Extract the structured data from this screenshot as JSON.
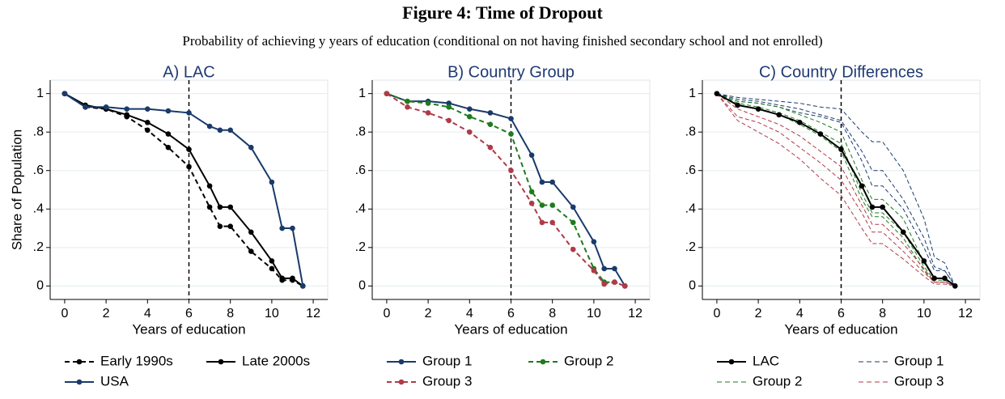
{
  "title": "Figure 4: Time of Dropout",
  "subtitle": "Probability of achieving y years of education (conditional on not having finished secondary school and not enrolled)",
  "chart_data": [
    {
      "type": "line",
      "title": "A) LAC",
      "xlabel": "Years of education",
      "ylabel": "Share of Population",
      "x": [
        0,
        1,
        2,
        3,
        4,
        5,
        6,
        7,
        7.5,
        8,
        9,
        10,
        10.5,
        11,
        11.5
      ],
      "xlim": [
        -0.7,
        12.7
      ],
      "ylim": [
        -0.07,
        1.07
      ],
      "xticks": [
        0,
        2,
        4,
        6,
        8,
        10,
        12
      ],
      "yticks": [
        0,
        {
          "value": 0.2,
          "label": ".2"
        },
        {
          "value": 0.4,
          "label": ".4"
        },
        {
          "value": 0.6,
          "label": ".6"
        },
        {
          "value": 0.8,
          "label": ".8"
        },
        1
      ],
      "vline": 6,
      "grid": true,
      "legend": "bottom",
      "series": [
        {
          "name": "Early 1990s",
          "color": "#000000",
          "dash": true,
          "marker": true,
          "values": [
            1.0,
            0.93,
            0.92,
            0.88,
            0.81,
            0.72,
            0.62,
            0.41,
            0.31,
            0.31,
            0.18,
            0.09,
            0.03,
            0.03,
            0.0
          ]
        },
        {
          "name": "Late 2000s",
          "color": "#000000",
          "dash": false,
          "marker": true,
          "values": [
            1.0,
            0.94,
            0.92,
            0.89,
            0.85,
            0.79,
            0.71,
            0.52,
            0.41,
            0.41,
            0.28,
            0.13,
            0.04,
            0.04,
            0.0
          ]
        },
        {
          "name": "USA",
          "color": "#1a3a6b",
          "dash": false,
          "marker": true,
          "values": [
            1.0,
            0.93,
            0.93,
            0.92,
            0.92,
            0.91,
            0.9,
            0.83,
            0.81,
            0.81,
            0.72,
            0.54,
            0.3,
            0.3,
            0.0
          ]
        }
      ]
    },
    {
      "type": "line",
      "title": "B) Country Group",
      "xlabel": "Years of education",
      "x": [
        0,
        1,
        2,
        3,
        4,
        5,
        6,
        7,
        7.5,
        8,
        9,
        10,
        10.5,
        11,
        11.5
      ],
      "xlim": [
        -0.7,
        12.7
      ],
      "ylim": [
        -0.07,
        1.07
      ],
      "xticks": [
        0,
        2,
        4,
        6,
        8,
        10,
        12
      ],
      "yticks": [
        0,
        {
          "value": 0.2,
          "label": ".2"
        },
        {
          "value": 0.4,
          "label": ".4"
        },
        {
          "value": 0.6,
          "label": ".6"
        },
        {
          "value": 0.8,
          "label": ".8"
        },
        1
      ],
      "vline": 6,
      "grid": true,
      "legend": "bottom",
      "series": [
        {
          "name": "Group 1",
          "color": "#1a3a6b",
          "dash": false,
          "marker": true,
          "values": [
            1.0,
            0.96,
            0.96,
            0.95,
            0.92,
            0.9,
            0.87,
            0.68,
            0.54,
            0.54,
            0.41,
            0.23,
            0.09,
            0.09,
            0.0
          ]
        },
        {
          "name": "Group 2",
          "color": "#1e7b1e",
          "dash": true,
          "marker": true,
          "values": [
            1.0,
            0.96,
            0.95,
            0.93,
            0.88,
            0.84,
            0.79,
            0.49,
            0.42,
            0.42,
            0.33,
            0.09,
            0.02,
            0.02,
            0.0
          ]
        },
        {
          "name": "Group 3",
          "color": "#b03a48",
          "dash": true,
          "marker": true,
          "values": [
            1.0,
            0.93,
            0.9,
            0.86,
            0.8,
            0.72,
            0.6,
            0.43,
            0.33,
            0.33,
            0.19,
            0.08,
            0.01,
            0.02,
            0.0
          ]
        }
      ]
    },
    {
      "type": "line",
      "title": "C) Country Differences",
      "xlabel": "Years of education",
      "x": [
        0,
        1,
        2,
        3,
        4,
        5,
        6,
        7,
        7.5,
        8,
        9,
        10,
        10.5,
        11,
        11.5
      ],
      "xlim": [
        -0.7,
        12.7
      ],
      "ylim": [
        -0.07,
        1.07
      ],
      "xticks": [
        0,
        2,
        4,
        6,
        8,
        10,
        12
      ],
      "yticks": [
        0,
        {
          "value": 0.2,
          "label": ".2"
        },
        {
          "value": 0.4,
          "label": ".4"
        },
        {
          "value": 0.6,
          "label": ".6"
        },
        {
          "value": 0.8,
          "label": ".8"
        },
        1
      ],
      "vline": 6,
      "grid": true,
      "legend": "bottom",
      "series": [
        {
          "name": "LAC",
          "color": "#000000",
          "dash": false,
          "marker": true,
          "values": [
            1.0,
            0.94,
            0.92,
            0.89,
            0.85,
            0.79,
            0.71,
            0.52,
            0.41,
            0.41,
            0.28,
            0.13,
            0.04,
            0.04,
            0.0
          ]
        },
        {
          "name": "Group 1",
          "color": "#1a3a6b",
          "dash": true,
          "marker": false,
          "lines": [
            [
              1.0,
              0.98,
              0.97,
              0.96,
              0.95,
              0.93,
              0.92,
              0.8,
              0.75,
              0.75,
              0.6,
              0.35,
              0.15,
              0.12,
              0.0
            ],
            [
              1.0,
              0.97,
              0.96,
              0.94,
              0.92,
              0.89,
              0.86,
              0.7,
              0.6,
              0.6,
              0.45,
              0.25,
              0.1,
              0.08,
              0.0
            ],
            [
              1.0,
              0.96,
              0.95,
              0.93,
              0.9,
              0.88,
              0.85,
              0.65,
              0.52,
              0.52,
              0.4,
              0.2,
              0.08,
              0.08,
              0.0
            ]
          ]
        },
        {
          "name": "Group 2",
          "color": "#1e7b1e",
          "dash": true,
          "marker": false,
          "lines": [
            [
              1.0,
              0.96,
              0.95,
              0.93,
              0.89,
              0.85,
              0.8,
              0.55,
              0.45,
              0.45,
              0.35,
              0.12,
              0.04,
              0.04,
              0.0
            ],
            [
              1.0,
              0.95,
              0.93,
              0.9,
              0.86,
              0.8,
              0.74,
              0.48,
              0.38,
              0.38,
              0.28,
              0.1,
              0.03,
              0.03,
              0.0
            ],
            [
              1.0,
              0.94,
              0.92,
              0.89,
              0.84,
              0.78,
              0.7,
              0.45,
              0.36,
              0.36,
              0.25,
              0.08,
              0.02,
              0.02,
              0.0
            ]
          ]
        },
        {
          "name": "Group 3",
          "color": "#b03a48",
          "dash": true,
          "marker": false,
          "lines": [
            [
              1.0,
              0.92,
              0.88,
              0.84,
              0.78,
              0.7,
              0.62,
              0.42,
              0.32,
              0.32,
              0.22,
              0.09,
              0.02,
              0.02,
              0.0
            ],
            [
              1.0,
              0.88,
              0.85,
              0.8,
              0.72,
              0.64,
              0.55,
              0.38,
              0.28,
              0.28,
              0.18,
              0.07,
              0.02,
              0.02,
              0.0
            ],
            [
              1.0,
              0.86,
              0.8,
              0.74,
              0.66,
              0.56,
              0.47,
              0.3,
              0.22,
              0.22,
              0.14,
              0.05,
              0.01,
              0.01,
              0.0
            ]
          ]
        }
      ]
    }
  ]
}
